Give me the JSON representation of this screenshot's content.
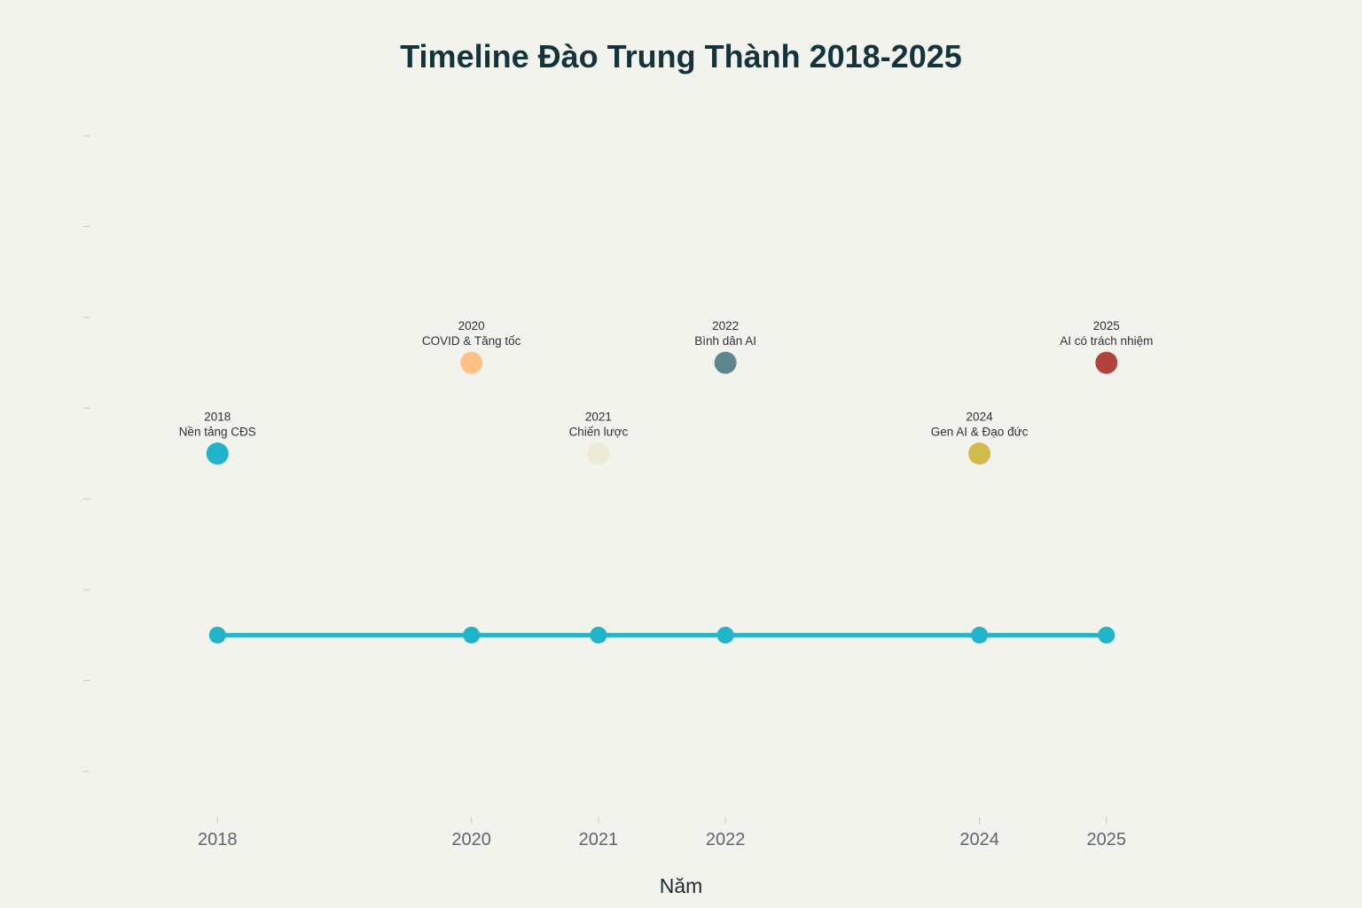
{
  "chart_data": {
    "type": "scatter",
    "title": "Timeline Đào Trung Thành 2018-2025",
    "xlabel": "Năm",
    "ylabel": "",
    "xlim": [
      2017.0,
      2026.3
    ],
    "ylim": [
      -1.0,
      7.0
    ],
    "x_ticks": [
      "2018",
      "2020",
      "2021",
      "2022",
      "2024",
      "2025"
    ],
    "timeline": {
      "x": [
        2018,
        2020,
        2021,
        2022,
        2024,
        2025
      ],
      "y": 1,
      "color": "#21b4c8"
    },
    "events": [
      {
        "year": 2018,
        "y": 3,
        "label_year": "2018",
        "label_text": "Nền tảng CĐS",
        "color": "#21b4c8"
      },
      {
        "year": 2020,
        "y": 4,
        "label_year": "2020",
        "label_text": "COVID & Tăng tốc",
        "color": "#ffc185"
      },
      {
        "year": 2021,
        "y": 3,
        "label_year": "2021",
        "label_text": "Chiến lược",
        "color": "#ece9d6"
      },
      {
        "year": 2022,
        "y": 4,
        "label_year": "2022",
        "label_text": "Bình dân AI",
        "color": "#5d878f"
      },
      {
        "year": 2024,
        "y": 3,
        "label_year": "2024",
        "label_text": "Gen AI & Đạo đức",
        "color": "#d2ba4c"
      },
      {
        "year": 2025,
        "y": 4,
        "label_year": "2025",
        "label_text": "AI có trách nhiệm",
        "color": "#b4413c"
      }
    ],
    "grid": false,
    "legend": "none"
  }
}
